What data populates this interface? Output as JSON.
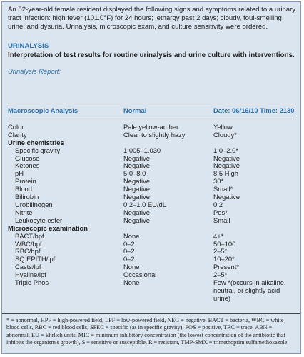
{
  "intro": "An 82-year-old female resident displayed the following signs and symptoms related to a urinary tract infection: high fever (101.0°F) for 24 hours; lethargy past 2 days; cloudy, foul-smelling urine; and dysuria. Urinalysis, microscopic exam, and culture sensitivity were ordered.",
  "section_title": "URINALYSIS",
  "subtitle": "Interpretation of test results for routine urinalysis and urine culture with interventions.",
  "report_label": "Urinalysis Report:",
  "table": {
    "header": [
      "Macroscopic Analysis",
      "Normal",
      "Date: 06/16/10 Time: 2130"
    ],
    "rows": [
      [
        "Color",
        "Pale yellow-amber",
        "Yellow"
      ],
      [
        "Clarity",
        "Clear to slightly hazy",
        "Cloudy*"
      ],
      [
        "Urine chemistries"
      ],
      [
        "Specific gravity",
        "1.005–1.030",
        "1.0–2.0*"
      ],
      [
        "Glucose",
        "Negative",
        "Negative"
      ],
      [
        "Ketones",
        "Negative",
        "Negative"
      ],
      [
        "pH",
        "5.0–8.0",
        "8.5 High"
      ],
      [
        "Protein",
        "Negative",
        "30*"
      ],
      [
        "Blood",
        "Negative",
        "Small*"
      ],
      [
        "Bilirubin",
        "Negative",
        "Negative"
      ],
      [
        "Urobilinogen",
        "0.2–1.0 EU/dL",
        "0.2"
      ],
      [
        "Nitrite",
        "Negative",
        "Pos*"
      ],
      [
        "Leukocyte ester",
        "Negative",
        "Small"
      ],
      [
        "Microscopic examination"
      ],
      [
        "BACT/hpf",
        "None",
        "4+*"
      ],
      [
        "WBC/hpf",
        "0–2",
        "50–100"
      ],
      [
        "RBC/hpf",
        "0–2",
        "2–5*"
      ],
      [
        "SQ EPITH/lpf",
        "0–2",
        "10–20*"
      ],
      [
        "Casts/lpf",
        "None",
        "Present*"
      ],
      [
        "Hyaline/lpf",
        "Occasional",
        "2–5*"
      ],
      [
        "Triple Phos",
        "None",
        "Few *(occurs in alkaline, neutral, or slightly acid urine)"
      ]
    ]
  },
  "footnote": "* = abnormal, HPF = high-powered field, LPF = low-powered field, NEG = negative, BACT = bacteria, WBC = white blood cells, RBC = red blood cells, SPEC = specific (as in specific gravity), POS = positive, TRC = trace, ABN = abnormal, EU = Ehrlich units, MIC = minimum inhibitory concentration (the lowest concentration of the antibiotic that inhibits the organism's growth), S = sensitive or susceptible, R = resistant, TMP-SMX = trimethoprim sulfamethoxazole"
}
